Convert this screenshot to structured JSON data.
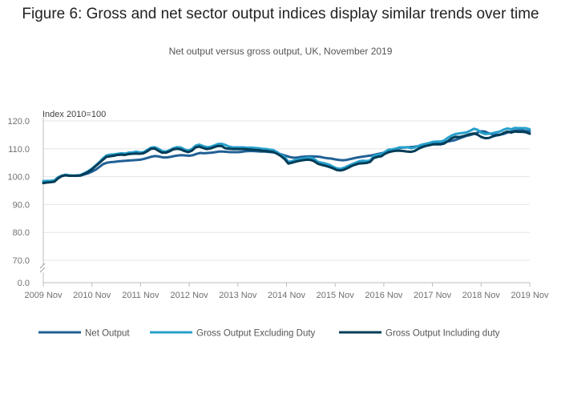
{
  "title": "Figure 6: Gross and net sector output indices display similar trends over time",
  "subtitle": "Net output versus gross output, UK, November 2019",
  "chart_data": {
    "type": "line",
    "ylabel": "Index 2010=100",
    "ylim": [
      0,
      120
    ],
    "y_axis_break": true,
    "y_ticks": [
      "0.0",
      "70.0",
      "80.0",
      "90.0",
      "100.0",
      "110.0",
      "120.0"
    ],
    "x_ticks": [
      "2009 Nov",
      "2010 Nov",
      "2011 Nov",
      "2012 Nov",
      "2013 Nov",
      "2014 Nov",
      "2015 Nov",
      "2016 Nov",
      "2017 Nov",
      "2018 Nov",
      "2019 Nov"
    ],
    "x_start": "2009 Nov",
    "x_end": "2019 Nov",
    "grid": "horizontal",
    "legend_position": "bottom",
    "series": [
      {
        "name": "Net Output",
        "color": "#206095",
        "values": [
          98.2,
          98.3,
          98.4,
          98.5,
          99.6,
          100.3,
          100.6,
          100.4,
          100.3,
          100.4,
          100.4,
          100.8,
          101.2,
          101.8,
          102.5,
          103.5,
          104.5,
          105.0,
          105.2,
          105.3,
          105.5,
          105.6,
          105.7,
          105.8,
          105.9,
          106.0,
          106.1,
          106.4,
          106.8,
          107.2,
          107.4,
          107.2,
          106.9,
          106.9,
          107.1,
          107.4,
          107.6,
          107.7,
          107.6,
          107.5,
          107.7,
          108.2,
          108.5,
          108.4,
          108.5,
          108.6,
          108.8,
          109.0,
          109.0,
          108.9,
          108.8,
          108.8,
          108.8,
          108.9,
          109.1,
          109.2,
          109.2,
          109.1,
          109.0,
          109.0,
          108.9,
          108.8,
          108.6,
          108.3,
          107.8,
          107.4,
          107.0,
          106.8,
          106.9,
          107.1,
          107.2,
          107.3,
          107.3,
          107.2,
          107.1,
          106.8,
          106.6,
          106.5,
          106.2,
          106.0,
          105.9,
          106.0,
          106.3,
          106.6,
          106.9,
          107.1,
          107.3,
          107.5,
          107.7,
          108.0,
          108.3,
          108.6,
          109.0,
          109.5,
          109.9,
          110.2,
          110.4,
          110.5,
          110.6,
          110.7,
          110.9,
          111.1,
          111.3,
          111.5,
          111.8,
          112.0,
          112.2,
          112.4,
          112.6,
          112.8,
          113.1,
          113.6,
          114.1,
          114.6,
          114.9,
          115.3,
          115.8,
          116.3,
          116.2,
          115.6,
          115.2,
          115.0,
          115.1,
          115.3,
          115.8,
          116.2,
          116.5,
          116.6,
          116.6,
          116.4,
          116.2
        ]
      },
      {
        "name": "Gross Output Excluding Duty",
        "color": "#27a0cc",
        "values": [
          98.4,
          98.5,
          98.5,
          98.7,
          99.8,
          100.4,
          100.7,
          100.5,
          100.4,
          100.5,
          100.6,
          101.2,
          101.9,
          102.8,
          103.9,
          105.1,
          106.5,
          107.6,
          107.9,
          108.0,
          108.2,
          108.4,
          108.3,
          108.6,
          108.7,
          109.0,
          108.7,
          108.8,
          109.6,
          110.4,
          110.6,
          110.0,
          109.2,
          109.0,
          109.5,
          110.2,
          110.6,
          110.5,
          109.8,
          109.4,
          109.9,
          111.1,
          111.5,
          111.0,
          110.6,
          110.7,
          111.2,
          111.7,
          111.8,
          111.4,
          110.8,
          110.5,
          110.5,
          110.5,
          110.5,
          110.4,
          110.4,
          110.3,
          110.2,
          110.0,
          109.9,
          109.7,
          109.5,
          108.8,
          107.8,
          107.1,
          105.3,
          105.6,
          106.0,
          106.3,
          106.5,
          106.8,
          106.8,
          106.3,
          105.3,
          105.0,
          104.7,
          104.3,
          103.6,
          103.0,
          102.8,
          103.2,
          103.8,
          104.4,
          104.9,
          105.5,
          105.7,
          105.6,
          105.8,
          107.4,
          107.8,
          108.1,
          108.9,
          109.7,
          109.8,
          110.1,
          110.5,
          110.5,
          110.6,
          110.2,
          110.5,
          111.0,
          111.5,
          111.8,
          112.1,
          112.5,
          112.6,
          112.6,
          113.0,
          114.0,
          114.8,
          115.3,
          115.5,
          115.7,
          115.9,
          116.5,
          117.2,
          116.8,
          115.7,
          115.3,
          115.4,
          115.6,
          115.9,
          116.2,
          116.9,
          117.3,
          117.0,
          117.5,
          117.4,
          117.4,
          117.4,
          117.0
        ]
      },
      {
        "name": "Gross Output Including duty",
        "color": "#003c57",
        "values": [
          97.7,
          97.9,
          98.0,
          98.2,
          99.4,
          100.2,
          100.5,
          100.3,
          100.3,
          100.3,
          100.4,
          101.0,
          101.6,
          102.5,
          103.7,
          104.8,
          106.0,
          107.1,
          107.3,
          107.5,
          107.8,
          107.9,
          107.8,
          108.1,
          108.2,
          108.3,
          108.2,
          108.4,
          109.1,
          110.0,
          110.1,
          109.3,
          108.6,
          108.6,
          109.1,
          109.8,
          110.0,
          109.8,
          109.2,
          108.8,
          109.3,
          110.5,
          110.8,
          110.3,
          109.9,
          110.1,
          110.6,
          111.0,
          111.0,
          110.2,
          110.0,
          109.9,
          109.9,
          109.9,
          109.9,
          109.8,
          109.7,
          109.6,
          109.5,
          109.3,
          109.2,
          109.0,
          108.8,
          108.2,
          107.4,
          106.3,
          104.7,
          105.0,
          105.4,
          105.7,
          105.9,
          106.1,
          106.0,
          105.5,
          104.6,
          104.2,
          103.9,
          103.5,
          103.0,
          102.4,
          102.2,
          102.5,
          103.1,
          103.8,
          104.3,
          104.7,
          104.8,
          104.9,
          105.3,
          106.7,
          107.1,
          107.3,
          108.2,
          108.8,
          109.1,
          109.3,
          109.3,
          109.2,
          109.0,
          108.9,
          109.2,
          110.0,
          110.6,
          111.0,
          111.3,
          111.6,
          111.6,
          111.6,
          111.9,
          112.8,
          113.8,
          114.3,
          114.2,
          114.5,
          114.9,
          115.3,
          115.5,
          115.0,
          114.2,
          113.8,
          113.9,
          114.4,
          114.8,
          115.0,
          115.7,
          116.2,
          115.8,
          116.2,
          116.1,
          116.1,
          115.9,
          115.4
        ]
      }
    ]
  }
}
